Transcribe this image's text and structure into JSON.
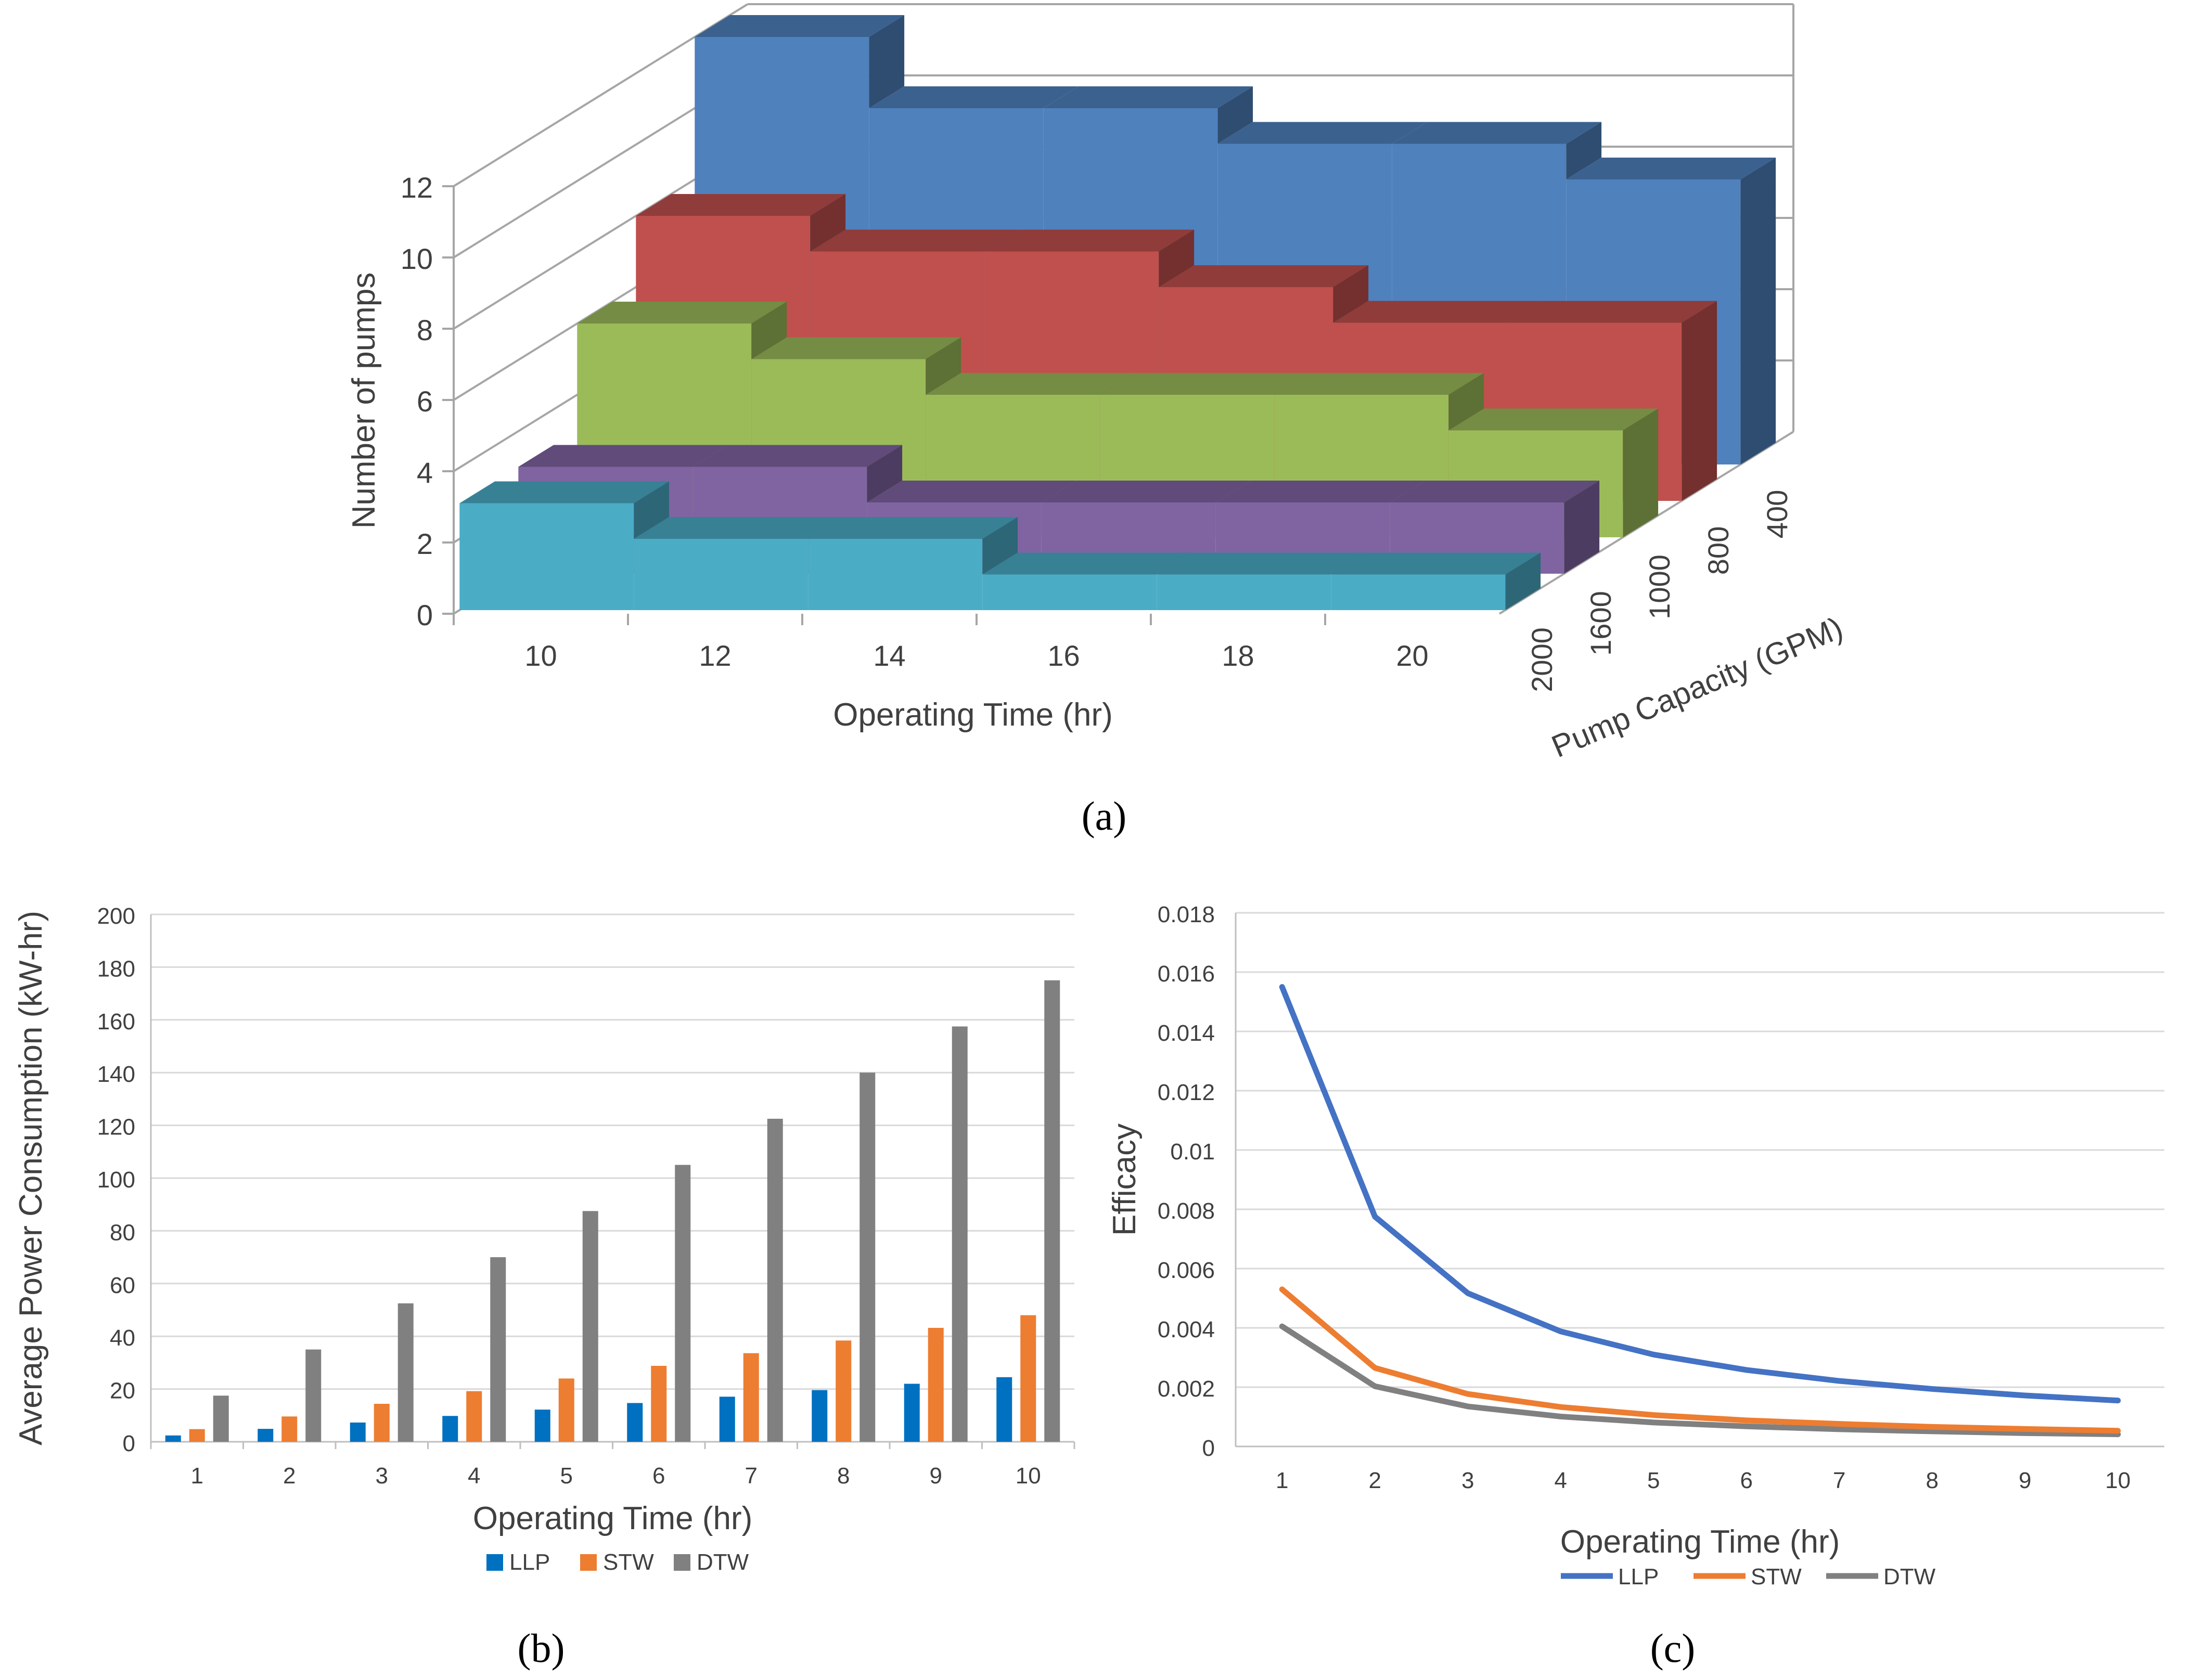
{
  "captions": {
    "a": "(a)",
    "b": "(b)",
    "c": "(c)"
  },
  "chart_data": [
    {
      "id": "a",
      "type": "bar3d",
      "xlabel": "Operating Time (hr)",
      "ylabel": "Number of pumps",
      "zlabel": "Pump Capacity (GPM)",
      "ylim": [
        0,
        12
      ],
      "yticks": [
        "0",
        "2",
        "4",
        "6",
        "8",
        "10",
        "12"
      ],
      "categories": [
        "10",
        "12",
        "14",
        "16",
        "18",
        "20"
      ],
      "series": [
        {
          "name": "2000",
          "color": "#4bacc6",
          "values": [
            3,
            2,
            2,
            1,
            1,
            1
          ]
        },
        {
          "name": "1600",
          "color": "#8064a2",
          "values": [
            3,
            3,
            2,
            2,
            2,
            2
          ]
        },
        {
          "name": "1000",
          "color": "#9bbb59",
          "values": [
            6,
            5,
            4,
            4,
            4,
            3
          ]
        },
        {
          "name": "800",
          "color": "#c0504d",
          "values": [
            8,
            7,
            7,
            6,
            5,
            5
          ]
        },
        {
          "name": "400",
          "color": "#4f81bd",
          "values": [
            12,
            10,
            10,
            9,
            9,
            8
          ]
        }
      ]
    },
    {
      "id": "b",
      "type": "bar",
      "xlabel": "Operating Time (hr)",
      "ylabel": "Average Power Consumption (kW-hr)",
      "ylim": [
        0,
        200
      ],
      "yticks": [
        "0",
        "20",
        "40",
        "60",
        "80",
        "100",
        "120",
        "140",
        "160",
        "180",
        "200"
      ],
      "categories": [
        "1",
        "2",
        "3",
        "4",
        "5",
        "6",
        "7",
        "8",
        "9",
        "10"
      ],
      "legend": "bottom",
      "series": [
        {
          "name": "LLP",
          "color": "#0070c0",
          "values": [
            2.4,
            4.9,
            7.3,
            9.8,
            12.2,
            14.7,
            17.1,
            19.6,
            22.0,
            24.5
          ]
        },
        {
          "name": "STW",
          "color": "#ed7d31",
          "values": [
            4.8,
            9.6,
            14.4,
            19.2,
            24.0,
            28.8,
            33.6,
            38.4,
            43.2,
            48.0
          ]
        },
        {
          "name": "DTW",
          "color": "#808080",
          "values": [
            17.5,
            35.0,
            52.5,
            70.0,
            87.5,
            105.0,
            122.5,
            140.0,
            157.5,
            175.0
          ]
        }
      ]
    },
    {
      "id": "c",
      "type": "line",
      "xlabel": "Operating Time (hr)",
      "ylabel": "Efficacy",
      "ylim": [
        0,
        0.018
      ],
      "yticks": [
        "0",
        "0.002",
        "0.004",
        "0.006",
        "0.008",
        "0.01",
        "0.012",
        "0.014",
        "0.016",
        "0.018"
      ],
      "categories": [
        "1",
        "2",
        "3",
        "4",
        "5",
        "6",
        "7",
        "8",
        "9",
        "10"
      ],
      "legend": "bottom",
      "series": [
        {
          "name": "LLP",
          "color": "#4472c4",
          "values": [
            0.0155,
            0.00775,
            0.00517,
            0.00388,
            0.0031,
            0.00258,
            0.00221,
            0.00194,
            0.00172,
            0.00155
          ]
        },
        {
          "name": "STW",
          "color": "#ed7d31",
          "values": [
            0.0053,
            0.00265,
            0.00177,
            0.00133,
            0.00106,
            0.00088,
            0.00076,
            0.00066,
            0.00059,
            0.00053
          ]
        },
        {
          "name": "DTW",
          "color": "#808080",
          "values": [
            0.00405,
            0.00203,
            0.00135,
            0.00101,
            0.00081,
            0.00068,
            0.00058,
            0.00051,
            0.00045,
            0.00041
          ]
        }
      ]
    }
  ]
}
